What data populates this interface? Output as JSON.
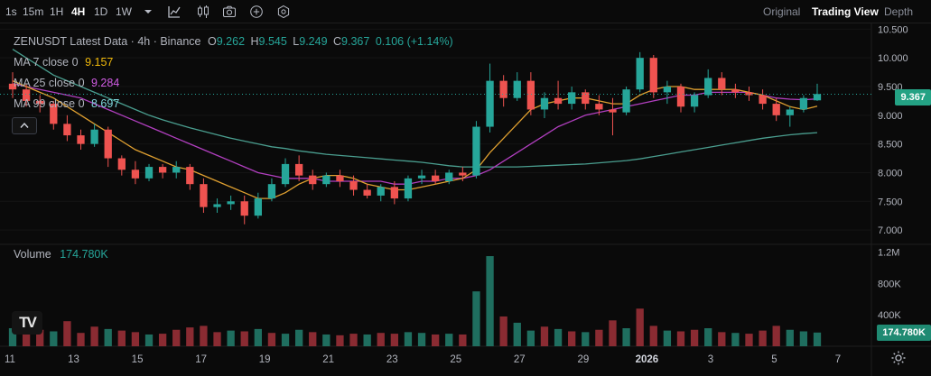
{
  "toolbar": {
    "timeframes": [
      "1s",
      "15m",
      "1H",
      "4H",
      "1D",
      "1W"
    ],
    "active_timeframe": "4H",
    "icons": [
      "chevron-down-icon",
      "indicators-icon",
      "chart-type-icon",
      "camera-icon",
      "add-icon",
      "settings-hex-icon"
    ],
    "view_tabs": [
      "Original",
      "Trading View",
      "Depth"
    ],
    "active_view": "Trading View"
  },
  "legend": {
    "symbol": "ZENUSDT Latest Data",
    "interval": "4h",
    "exchange": "Binance",
    "open_label": "O",
    "open": "9.262",
    "high_label": "H",
    "high": "9.545",
    "low_label": "L",
    "low": "9.249",
    "close_label": "C",
    "close": "9.367",
    "change": "0.106 (+1.14%)",
    "ma7_label": "MA 7 close 0",
    "ma7_value": "9.157",
    "ma25_label": "MA 25 close 0",
    "ma25_value": "9.284",
    "ma99_label": "MA 99 close 0",
    "ma99_value": "8.697",
    "volume_label": "Volume",
    "volume_value": "174.780K",
    "collapse_icon": "chevron-up-icon"
  },
  "colors": {
    "up": "#26a69a",
    "down": "#ef5350",
    "vol_up": "#1f6e5f",
    "vol_down": "#8a2b32",
    "ma7": "#e0a030",
    "ma25": "#b13fbf",
    "ma99": "#4a9e8f",
    "ma7_text": "#f0b90b",
    "ma25_text": "#d05ce3",
    "ma99_text": "#7fd6dd",
    "change_text": "#26a69a"
  },
  "price_axis": {
    "ticks": [
      "10.500",
      "10.000",
      "9.500",
      "9.000",
      "8.500",
      "8.000",
      "7.500",
      "7.000"
    ],
    "current_price": "9.367"
  },
  "volume_axis": {
    "ticks": [
      "1.2M",
      "800K",
      "400K"
    ],
    "current_volume": "174.780K"
  },
  "time_axis": {
    "ticks": [
      "11",
      "13",
      "15",
      "17",
      "19",
      "21",
      "23",
      "25",
      "27",
      "29",
      "2026",
      "3",
      "5",
      "7"
    ]
  },
  "chart_data": {
    "type": "candlestick",
    "title": "ZENUSDT Latest Data · 4h · Binance",
    "ylim": [
      6.75,
      10.6
    ],
    "volume_max": 1300000,
    "candles": [
      {
        "o": 9.55,
        "h": 9.75,
        "l": 9.3,
        "c": 9.45
      },
      {
        "o": 9.45,
        "h": 9.55,
        "l": 9.15,
        "c": 9.25
      },
      {
        "o": 9.25,
        "h": 9.35,
        "l": 9.05,
        "c": 9.2
      },
      {
        "o": 9.2,
        "h": 9.25,
        "l": 8.75,
        "c": 8.85
      },
      {
        "o": 8.85,
        "h": 9.0,
        "l": 8.55,
        "c": 8.65
      },
      {
        "o": 8.65,
        "h": 8.75,
        "l": 8.4,
        "c": 8.5
      },
      {
        "o": 8.5,
        "h": 8.85,
        "l": 8.45,
        "c": 8.75
      },
      {
        "o": 8.75,
        "h": 8.8,
        "l": 8.1,
        "c": 8.25
      },
      {
        "o": 8.25,
        "h": 8.3,
        "l": 7.95,
        "c": 8.05
      },
      {
        "o": 8.05,
        "h": 8.2,
        "l": 7.8,
        "c": 7.9
      },
      {
        "o": 7.9,
        "h": 8.15,
        "l": 7.85,
        "c": 8.1
      },
      {
        "o": 8.1,
        "h": 8.15,
        "l": 7.9,
        "c": 8.0
      },
      {
        "o": 8.0,
        "h": 8.2,
        "l": 7.9,
        "c": 8.1
      },
      {
        "o": 8.1,
        "h": 8.15,
        "l": 7.7,
        "c": 7.8
      },
      {
        "o": 7.8,
        "h": 7.9,
        "l": 7.3,
        "c": 7.4
      },
      {
        "o": 7.4,
        "h": 7.55,
        "l": 7.3,
        "c": 7.45
      },
      {
        "o": 7.45,
        "h": 7.6,
        "l": 7.35,
        "c": 7.5
      },
      {
        "o": 7.5,
        "h": 7.6,
        "l": 7.1,
        "c": 7.25
      },
      {
        "o": 7.25,
        "h": 7.65,
        "l": 7.2,
        "c": 7.55
      },
      {
        "o": 7.55,
        "h": 7.9,
        "l": 7.5,
        "c": 7.8
      },
      {
        "o": 7.8,
        "h": 8.25,
        "l": 7.75,
        "c": 8.15
      },
      {
        "o": 8.15,
        "h": 8.3,
        "l": 7.85,
        "c": 7.95
      },
      {
        "o": 7.95,
        "h": 8.05,
        "l": 7.7,
        "c": 7.8
      },
      {
        "o": 7.8,
        "h": 8.0,
        "l": 7.75,
        "c": 7.95
      },
      {
        "o": 7.95,
        "h": 8.05,
        "l": 7.75,
        "c": 7.85
      },
      {
        "o": 7.85,
        "h": 7.95,
        "l": 7.6,
        "c": 7.7
      },
      {
        "o": 7.7,
        "h": 7.8,
        "l": 7.55,
        "c": 7.6
      },
      {
        "o": 7.6,
        "h": 7.8,
        "l": 7.5,
        "c": 7.75
      },
      {
        "o": 7.75,
        "h": 7.85,
        "l": 7.45,
        "c": 7.55
      },
      {
        "o": 7.55,
        "h": 7.95,
        "l": 7.5,
        "c": 7.9
      },
      {
        "o": 7.9,
        "h": 8.05,
        "l": 7.8,
        "c": 7.95
      },
      {
        "o": 7.95,
        "h": 8.05,
        "l": 7.8,
        "c": 7.85
      },
      {
        "o": 7.85,
        "h": 8.05,
        "l": 7.8,
        "c": 8.0
      },
      {
        "o": 8.0,
        "h": 8.1,
        "l": 7.85,
        "c": 7.95
      },
      {
        "o": 7.95,
        "h": 8.9,
        "l": 7.9,
        "c": 8.8
      },
      {
        "o": 8.8,
        "h": 9.9,
        "l": 8.7,
        "c": 9.6
      },
      {
        "o": 9.6,
        "h": 9.7,
        "l": 9.15,
        "c": 9.3
      },
      {
        "o": 9.3,
        "h": 9.75,
        "l": 9.25,
        "c": 9.6
      },
      {
        "o": 9.6,
        "h": 9.75,
        "l": 9.0,
        "c": 9.1
      },
      {
        "o": 9.1,
        "h": 9.4,
        "l": 8.95,
        "c": 9.3
      },
      {
        "o": 9.3,
        "h": 9.6,
        "l": 9.1,
        "c": 9.2
      },
      {
        "o": 9.2,
        "h": 9.5,
        "l": 9.1,
        "c": 9.4
      },
      {
        "o": 9.4,
        "h": 9.45,
        "l": 9.1,
        "c": 9.2
      },
      {
        "o": 9.2,
        "h": 9.35,
        "l": 9.0,
        "c": 9.1
      },
      {
        "o": 9.1,
        "h": 9.3,
        "l": 8.65,
        "c": 9.05
      },
      {
        "o": 9.05,
        "h": 9.5,
        "l": 9.0,
        "c": 9.45
      },
      {
        "o": 9.45,
        "h": 10.1,
        "l": 9.4,
        "c": 10.0
      },
      {
        "o": 10.0,
        "h": 10.05,
        "l": 9.3,
        "c": 9.4
      },
      {
        "o": 9.4,
        "h": 9.6,
        "l": 9.2,
        "c": 9.5
      },
      {
        "o": 9.5,
        "h": 9.55,
        "l": 9.05,
        "c": 9.15
      },
      {
        "o": 9.15,
        "h": 9.4,
        "l": 9.05,
        "c": 9.35
      },
      {
        "o": 9.35,
        "h": 9.8,
        "l": 9.3,
        "c": 9.65
      },
      {
        "o": 9.65,
        "h": 9.75,
        "l": 9.35,
        "c": 9.45
      },
      {
        "o": 9.45,
        "h": 9.55,
        "l": 9.3,
        "c": 9.4
      },
      {
        "o": 9.4,
        "h": 9.5,
        "l": 9.25,
        "c": 9.35
      },
      {
        "o": 9.35,
        "h": 9.45,
        "l": 9.1,
        "c": 9.2
      },
      {
        "o": 9.2,
        "h": 9.3,
        "l": 8.9,
        "c": 9.0
      },
      {
        "o": 9.0,
        "h": 9.15,
        "l": 8.8,
        "c": 9.1
      },
      {
        "o": 9.1,
        "h": 9.35,
        "l": 9.05,
        "c": 9.3
      },
      {
        "o": 9.26,
        "h": 9.55,
        "l": 9.25,
        "c": 9.37
      }
    ],
    "volume": [
      {
        "v": 230000,
        "up": true
      },
      {
        "v": 180000,
        "up": false
      },
      {
        "v": 210000,
        "up": false
      },
      {
        "v": 190000,
        "up": true
      },
      {
        "v": 320000,
        "up": false
      },
      {
        "v": 170000,
        "up": false
      },
      {
        "v": 250000,
        "up": false
      },
      {
        "v": 220000,
        "up": true
      },
      {
        "v": 200000,
        "up": false
      },
      {
        "v": 180000,
        "up": false
      },
      {
        "v": 150000,
        "up": true
      },
      {
        "v": 160000,
        "up": false
      },
      {
        "v": 210000,
        "up": false
      },
      {
        "v": 240000,
        "up": false
      },
      {
        "v": 260000,
        "up": false
      },
      {
        "v": 180000,
        "up": false
      },
      {
        "v": 200000,
        "up": true
      },
      {
        "v": 190000,
        "up": false
      },
      {
        "v": 220000,
        "up": true
      },
      {
        "v": 170000,
        "up": false
      },
      {
        "v": 160000,
        "up": true
      },
      {
        "v": 210000,
        "up": true
      },
      {
        "v": 180000,
        "up": false
      },
      {
        "v": 150000,
        "up": true
      },
      {
        "v": 140000,
        "up": false
      },
      {
        "v": 160000,
        "up": false
      },
      {
        "v": 150000,
        "up": true
      },
      {
        "v": 170000,
        "up": false
      },
      {
        "v": 160000,
        "up": false
      },
      {
        "v": 180000,
        "up": true
      },
      {
        "v": 170000,
        "up": true
      },
      {
        "v": 150000,
        "up": false
      },
      {
        "v": 160000,
        "up": true
      },
      {
        "v": 150000,
        "up": false
      },
      {
        "v": 700000,
        "up": true
      },
      {
        "v": 1150000,
        "up": true
      },
      {
        "v": 380000,
        "up": false
      },
      {
        "v": 300000,
        "up": true
      },
      {
        "v": 200000,
        "up": true
      },
      {
        "v": 250000,
        "up": false
      },
      {
        "v": 220000,
        "up": true
      },
      {
        "v": 190000,
        "up": false
      },
      {
        "v": 180000,
        "up": true
      },
      {
        "v": 210000,
        "up": false
      },
      {
        "v": 330000,
        "up": false
      },
      {
        "v": 230000,
        "up": true
      },
      {
        "v": 480000,
        "up": false
      },
      {
        "v": 260000,
        "up": false
      },
      {
        "v": 200000,
        "up": true
      },
      {
        "v": 190000,
        "up": false
      },
      {
        "v": 210000,
        "up": false
      },
      {
        "v": 230000,
        "up": true
      },
      {
        "v": 180000,
        "up": false
      },
      {
        "v": 170000,
        "up": true
      },
      {
        "v": 160000,
        "up": false
      },
      {
        "v": 200000,
        "up": false
      },
      {
        "v": 260000,
        "up": false
      },
      {
        "v": 210000,
        "up": true
      },
      {
        "v": 190000,
        "up": true
      },
      {
        "v": 174780,
        "up": true
      }
    ],
    "ma7": [
      9.6,
      9.5,
      9.4,
      9.3,
      9.15,
      9.0,
      8.85,
      8.7,
      8.55,
      8.4,
      8.3,
      8.2,
      8.1,
      8.05,
      7.95,
      7.85,
      7.75,
      7.65,
      7.55,
      7.55,
      7.65,
      7.8,
      7.9,
      7.95,
      7.95,
      7.9,
      7.8,
      7.75,
      7.7,
      7.7,
      7.75,
      7.8,
      7.85,
      7.9,
      8.05,
      8.35,
      8.6,
      8.85,
      9.1,
      9.2,
      9.25,
      9.3,
      9.3,
      9.25,
      9.2,
      9.2,
      9.35,
      9.45,
      9.5,
      9.5,
      9.45,
      9.45,
      9.45,
      9.45,
      9.4,
      9.35,
      9.25,
      9.15,
      9.1,
      9.157
    ],
    "ma25": [
      9.55,
      9.5,
      9.45,
      9.4,
      9.35,
      9.3,
      9.2,
      9.1,
      9.0,
      8.9,
      8.8,
      8.7,
      8.6,
      8.5,
      8.4,
      8.3,
      8.2,
      8.1,
      8.0,
      7.95,
      7.9,
      7.9,
      7.9,
      7.85,
      7.85,
      7.85,
      7.85,
      7.85,
      7.8,
      7.8,
      7.85,
      7.85,
      7.9,
      7.9,
      7.95,
      8.05,
      8.2,
      8.35,
      8.5,
      8.65,
      8.8,
      8.9,
      9.0,
      9.05,
      9.1,
      9.15,
      9.2,
      9.25,
      9.3,
      9.35,
      9.35,
      9.4,
      9.4,
      9.4,
      9.4,
      9.35,
      9.3,
      9.28,
      9.27,
      9.284
    ],
    "ma99": [
      10.15,
      10.0,
      9.85,
      9.7,
      9.6,
      9.5,
      9.4,
      9.3,
      9.2,
      9.1,
      9.0,
      8.92,
      8.85,
      8.78,
      8.72,
      8.66,
      8.6,
      8.55,
      8.5,
      8.45,
      8.42,
      8.38,
      8.35,
      8.32,
      8.3,
      8.28,
      8.26,
      8.24,
      8.22,
      8.2,
      8.18,
      8.15,
      8.12,
      8.1,
      8.1,
      8.1,
      8.1,
      8.1,
      8.11,
      8.12,
      8.13,
      8.14,
      8.15,
      8.17,
      8.19,
      8.21,
      8.24,
      8.28,
      8.32,
      8.36,
      8.4,
      8.44,
      8.48,
      8.52,
      8.56,
      8.6,
      8.63,
      8.66,
      8.68,
      8.697
    ]
  }
}
